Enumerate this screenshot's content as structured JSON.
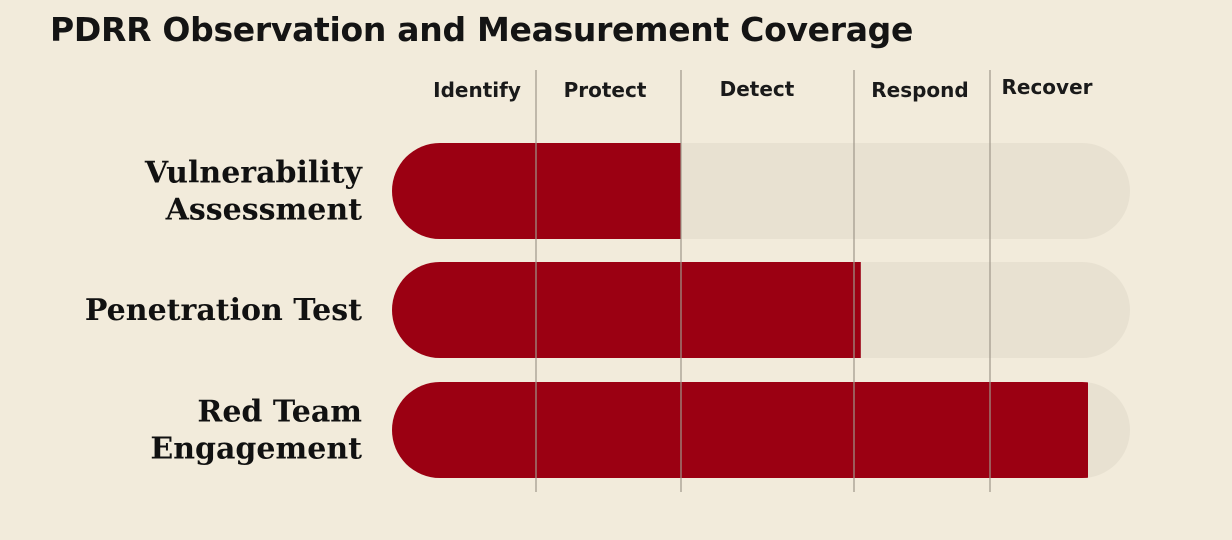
{
  "chart_data": {
    "type": "bar",
    "orientation": "horizontal",
    "title": "PDRR Observation and Measurement Coverage",
    "phases": [
      "Identify",
      "Protect",
      "Detect",
      "Respond",
      "Recover"
    ],
    "categories": [
      "Vulnerability Assessment",
      "Penetration Test",
      "Red Team Engagement"
    ],
    "category_lines": [
      [
        "Vulnerability",
        "Assessment"
      ],
      [
        "Penetration Test"
      ],
      [
        "Red Team",
        "Engagement"
      ]
    ],
    "values": [
      2,
      3.05,
      4.7
    ],
    "xlim": [
      0,
      5
    ],
    "value_unit": "PDRR phases covered",
    "grid": true,
    "colors": {
      "background": "#f2ebdb",
      "filled": "#9b0012",
      "track": "#e8e1d1",
      "gridline": "#9e978a"
    }
  }
}
